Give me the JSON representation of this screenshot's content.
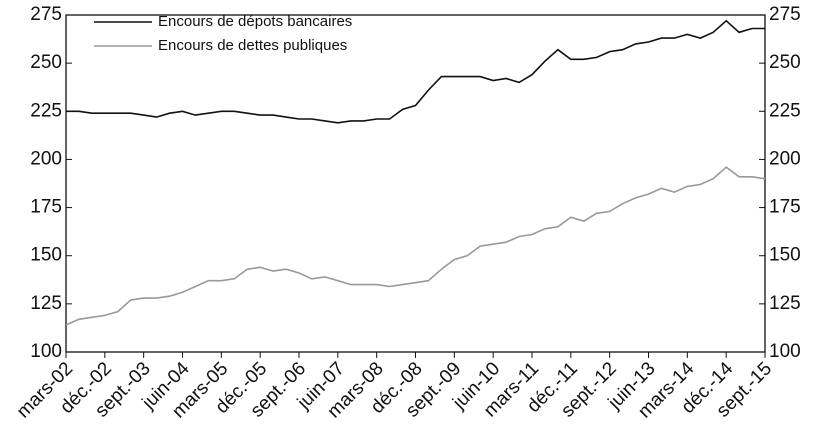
{
  "chart_data": {
    "type": "line",
    "categories": [
      "mars-02",
      null,
      null,
      "déc.-02",
      null,
      null,
      "sept.-03",
      null,
      null,
      "juin-04",
      null,
      null,
      "mars-05",
      null,
      null,
      "déc.-05",
      null,
      null,
      "sept.-06",
      null,
      null,
      "juin-07",
      null,
      null,
      "mars-08",
      null,
      null,
      "déc.-08",
      null,
      null,
      "sept.-09",
      null,
      null,
      "juin-10",
      null,
      null,
      "mars-11",
      null,
      null,
      "déc.-11",
      null,
      null,
      "sept.-12",
      null,
      null,
      "juin-13",
      null,
      null,
      "mars-14",
      null,
      null,
      "déc.-14",
      null,
      null,
      "sept.-15"
    ],
    "series": [
      {
        "name": "Encours de dépots bancaires",
        "color": "#111111",
        "values": [
          225,
          225,
          224,
          224,
          224,
          224,
          223,
          222,
          224,
          225,
          223,
          224,
          225,
          225,
          224,
          223,
          223,
          222,
          221,
          221,
          220,
          219,
          220,
          220,
          221,
          221,
          226,
          228,
          236,
          243,
          243,
          243,
          243,
          241,
          242,
          240,
          244,
          251,
          257,
          252,
          252,
          253,
          256,
          257,
          260,
          261,
          263,
          263,
          265,
          263,
          266,
          272,
          266,
          268,
          268
        ]
      },
      {
        "name": "Encours de dettes publiques",
        "color": "#999999",
        "values": [
          114,
          117,
          118,
          119,
          121,
          127,
          128,
          128,
          129,
          131,
          134,
          137,
          137,
          138,
          143,
          144,
          142,
          143,
          141,
          138,
          139,
          137,
          135,
          135,
          135,
          134,
          135,
          136,
          137,
          143,
          148,
          150,
          155,
          156,
          157,
          160,
          161,
          164,
          165,
          170,
          168,
          172,
          173,
          177,
          180,
          182,
          185,
          183,
          186,
          187,
          190,
          196,
          191,
          191,
          190
        ]
      }
    ],
    "ylim": [
      100,
      275
    ],
    "yticks": [
      100,
      125,
      150,
      175,
      200,
      225,
      250,
      275
    ],
    "y2lim": [
      100,
      275
    ],
    "y2ticks": [
      100,
      125,
      150,
      175,
      200,
      225,
      250,
      275
    ],
    "legend": "upper left"
  }
}
